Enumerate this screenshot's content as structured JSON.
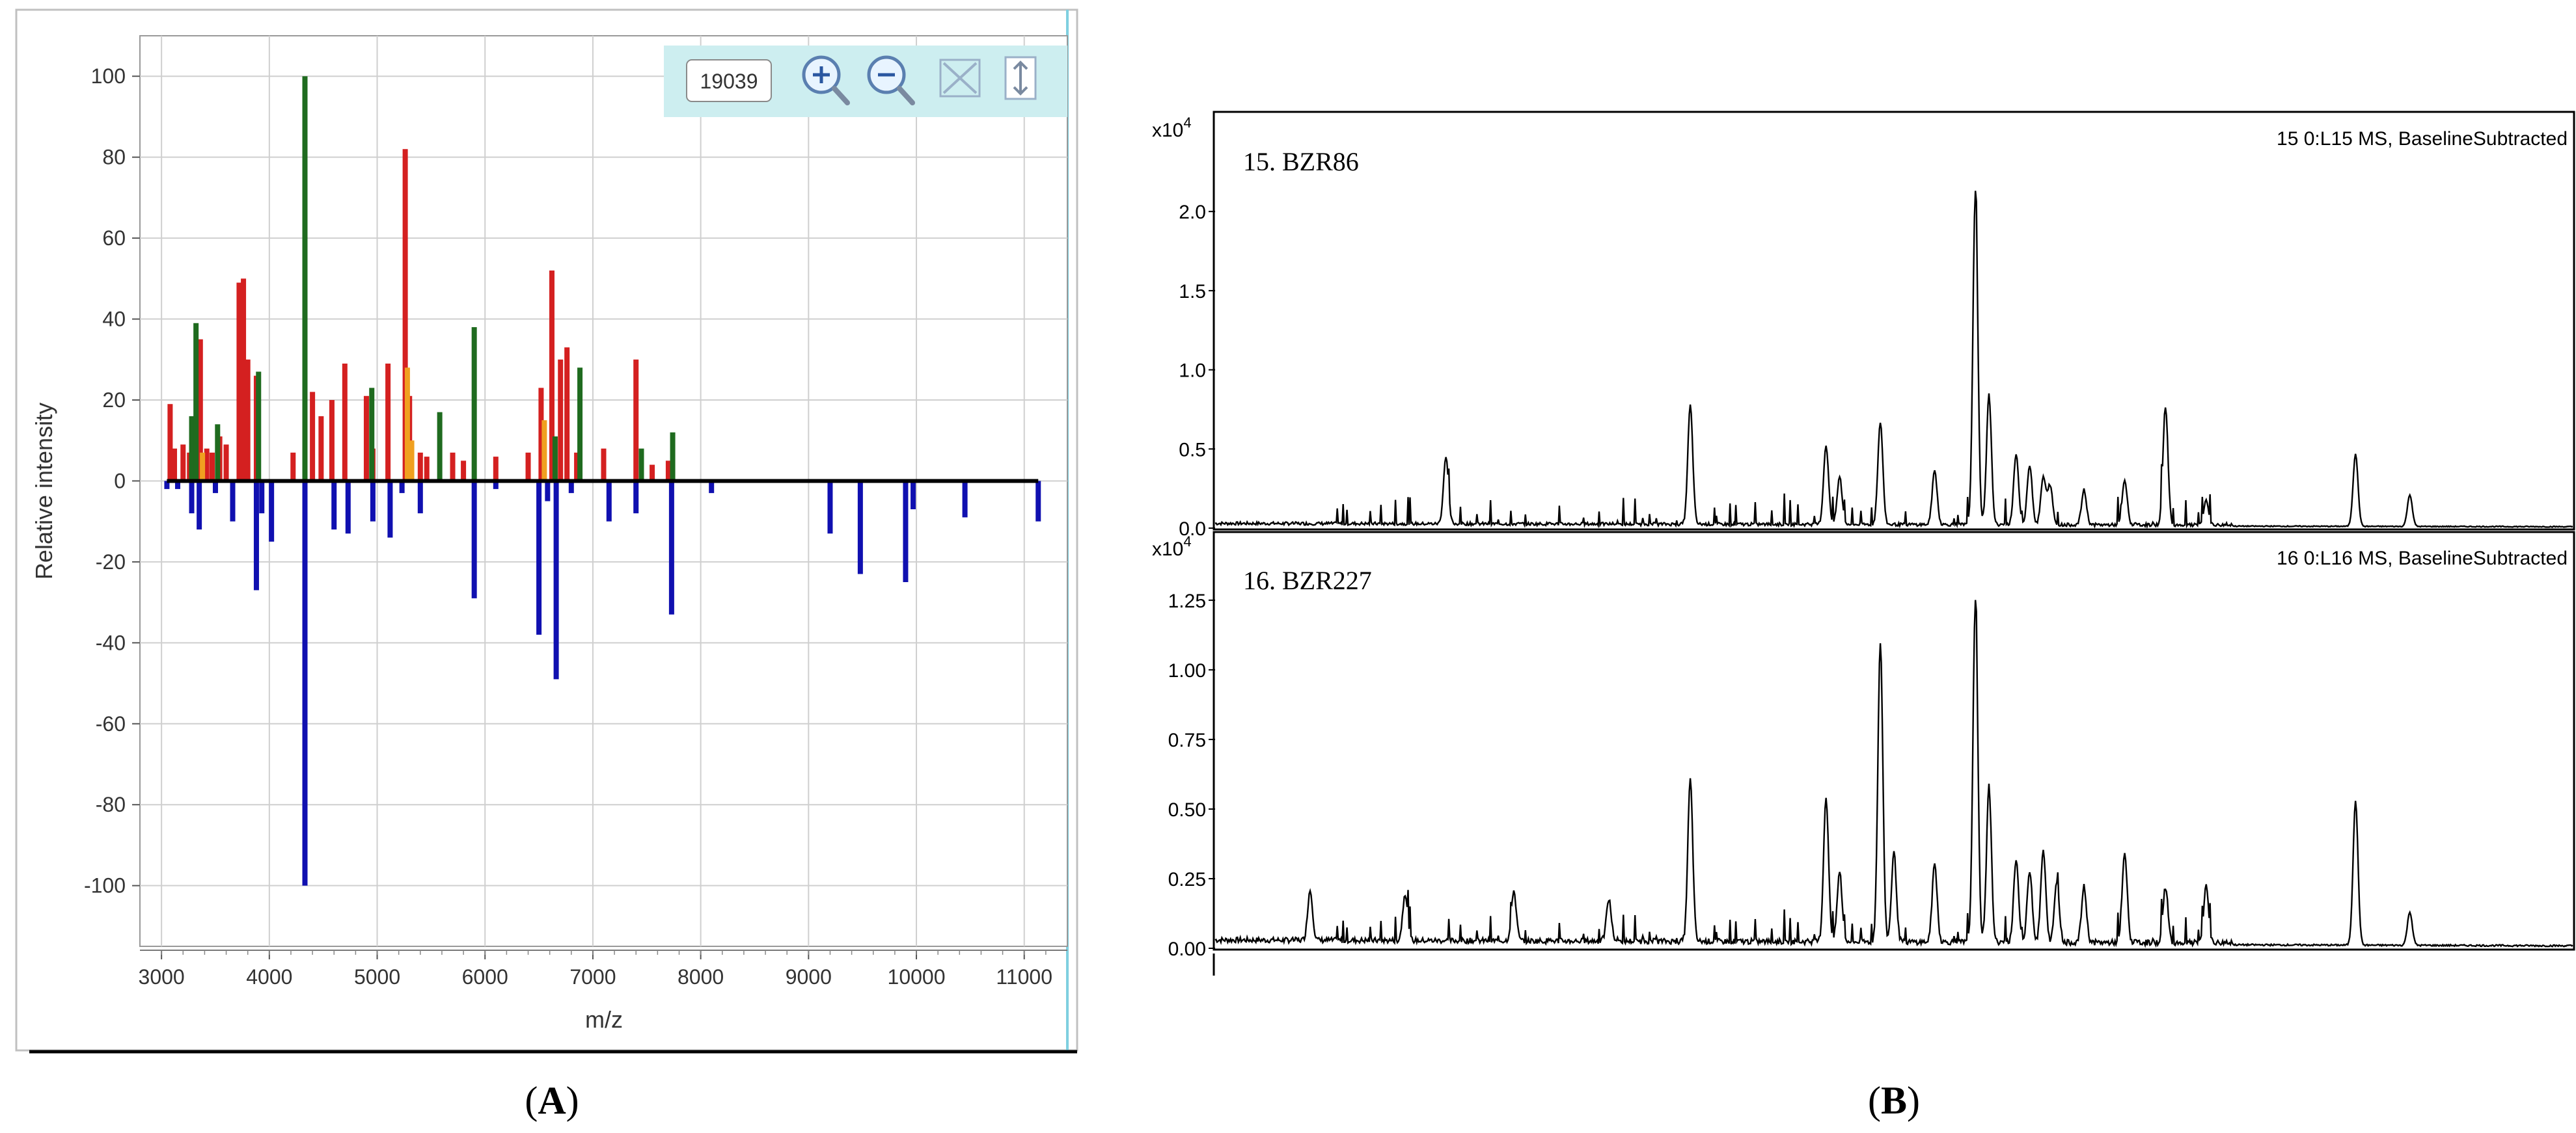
{
  "colors": {
    "red": "#d42020",
    "green": "#1f6b1f",
    "orange": "#f0a020",
    "blue": "#1010b0",
    "toolbar": "#cdeef0",
    "grid": "#cfcfcf"
  },
  "panel_labels": [
    "A",
    "B"
  ],
  "toolbar": {
    "readout": "19039",
    "icons": [
      "zoom-in-icon",
      "zoom-out-icon",
      "fit-all-icon",
      "vertical-resize-icon"
    ]
  },
  "chart_data": [
    {
      "type": "bar",
      "xlabel": "m/z",
      "ylabel": "Relative intensity",
      "xlim": [
        2800,
        11400
      ],
      "ylim": [
        -115,
        110
      ],
      "xticks": [
        3000,
        4000,
        5000,
        6000,
        7000,
        8000,
        9000,
        10000,
        11000
      ],
      "yticks": [
        100,
        80,
        60,
        40,
        20,
        0,
        -20,
        -40,
        -60,
        -80,
        -100
      ],
      "grid": true,
      "series": [
        {
          "color_key": "red",
          "x": [
            3080,
            3120,
            3200,
            3260,
            3360,
            3420,
            3470,
            3540,
            3600,
            3720,
            3760,
            3800,
            3880,
            4220,
            4400,
            4480,
            4580,
            4700,
            4900,
            4960,
            5100,
            5260,
            5300,
            5400,
            5460,
            5700,
            5800,
            6100,
            6400,
            6520,
            6620,
            6700,
            6760,
            6850,
            7100,
            7400,
            7550,
            7700
          ],
          "values": [
            19,
            8,
            9,
            7,
            35,
            8,
            7,
            11,
            9,
            49,
            50,
            30,
            26,
            7,
            22,
            16,
            20,
            29,
            21,
            8,
            29,
            82,
            21,
            7,
            6,
            7,
            5,
            6,
            7,
            23,
            52,
            30,
            33,
            7,
            8,
            30,
            4,
            5
          ]
        },
        {
          "color_key": "green",
          "x": [
            3280,
            3320,
            3520,
            3900,
            4330,
            4950,
            5580,
            5900,
            6650,
            6880,
            7450,
            7740
          ],
          "values": [
            16,
            39,
            14,
            27,
            100,
            23,
            17,
            38,
            11,
            28,
            8,
            12
          ]
        },
        {
          "color_key": "orange",
          "x": [
            3380,
            5280,
            5320,
            6550
          ],
          "values": [
            7,
            28,
            10,
            15
          ]
        },
        {
          "color_key": "blue",
          "x": [
            3050,
            3150,
            3280,
            3350,
            3500,
            3660,
            3880,
            3930,
            4020,
            4330,
            4600,
            4730,
            4960,
            5120,
            5230,
            5400,
            5900,
            6100,
            6500,
            6580,
            6660,
            6800,
            7150,
            7400,
            7730,
            8100,
            9200,
            9480,
            9900,
            9970,
            10450,
            11130
          ],
          "values": [
            -2,
            -2,
            -8,
            -12,
            -3,
            -10,
            -27,
            -8,
            -15,
            -100,
            -12,
            -13,
            -10,
            -14,
            -3,
            -8,
            -29,
            -2,
            -38,
            -5,
            -49,
            -3,
            -10,
            -8,
            -33,
            -3,
            -13,
            -23,
            -25,
            -7,
            -9,
            -10
          ]
        }
      ]
    },
    {
      "type": "line",
      "title": "15. BZR86",
      "header": "15 0:L15 MS, BaselineSubtracted",
      "exponent_base": "x10",
      "exponent_power": "4",
      "ylim": [
        0,
        2.35
      ],
      "yticks": [
        "2.0",
        "1.5",
        "1.0",
        "0.5",
        "0.0"
      ],
      "ytick_values": [
        2.0,
        1.5,
        1.0,
        0.5,
        0.0
      ],
      "x_positions": [
        0.17,
        0.35,
        0.45,
        0.46,
        0.49,
        0.53,
        0.56,
        0.57,
        0.59,
        0.6,
        0.61,
        0.615,
        0.64,
        0.67,
        0.7,
        0.73,
        0.84,
        0.88
      ],
      "peaks": [
        0.42,
        0.75,
        0.5,
        0.3,
        0.65,
        0.34,
        2.1,
        0.82,
        0.45,
        0.38,
        0.3,
        0.25,
        0.22,
        0.28,
        0.75,
        0.15,
        0.46,
        0.2
      ],
      "baseline": 0.02
    },
    {
      "type": "line",
      "title": "16. BZR227",
      "header": "16 0:L16 MS, BaselineSubtracted",
      "exponent_base": "x10",
      "exponent_power": "4",
      "ylim": [
        0,
        1.35
      ],
      "yticks": [
        "1.25",
        "1.00",
        "0.75",
        "0.50",
        "0.25",
        "0.00"
      ],
      "ytick_values": [
        1.25,
        1.0,
        0.75,
        0.5,
        0.25,
        0.0
      ],
      "x_positions": [
        0.07,
        0.14,
        0.22,
        0.29,
        0.35,
        0.45,
        0.46,
        0.49,
        0.5,
        0.53,
        0.56,
        0.57,
        0.59,
        0.6,
        0.61,
        0.62,
        0.64,
        0.67,
        0.7,
        0.73,
        0.84,
        0.88
      ],
      "peaks": [
        0.18,
        0.17,
        0.18,
        0.15,
        0.58,
        0.52,
        0.25,
        1.08,
        0.32,
        0.28,
        1.22,
        0.56,
        0.3,
        0.26,
        0.33,
        0.22,
        0.2,
        0.32,
        0.2,
        0.2,
        0.52,
        0.12
      ],
      "baseline": 0.02
    }
  ]
}
